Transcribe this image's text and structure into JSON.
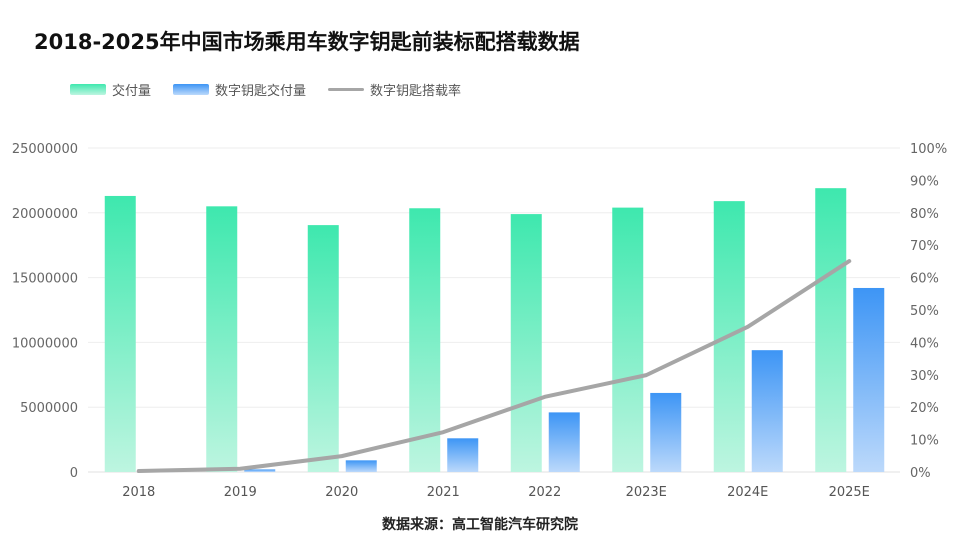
{
  "chart_data": {
    "type": "bar+line",
    "title": "2018-2025年中国市场乘用车数字钥匙前装标配搭载数据",
    "categories": [
      "2018",
      "2019",
      "2020",
      "2021",
      "2022",
      "2023E",
      "2024E",
      "2025E"
    ],
    "series": [
      {
        "name": "交付量",
        "type": "bar",
        "axis": "left",
        "color": "#3ee8ae",
        "values": [
          21300000,
          20500000,
          19050000,
          20350000,
          19900000,
          20400000,
          20900000,
          21900000
        ]
      },
      {
        "name": "数字钥匙交付量",
        "type": "bar",
        "axis": "left",
        "color": "#3d95f5",
        "values": [
          30000,
          200000,
          900000,
          2600000,
          4600000,
          6100000,
          9400000,
          14200000
        ]
      },
      {
        "name": "数字钥匙搭载率",
        "type": "line",
        "axis": "right",
        "color": "#a6a6a6",
        "values": [
          0.3,
          1.0,
          4.9,
          12.3,
          23.2,
          29.9,
          44.8,
          65.1
        ]
      }
    ],
    "y_left": {
      "ylim": [
        0,
        25000000
      ],
      "ticks": [
        "0",
        "5000000",
        "10000000",
        "15000000",
        "20000000",
        "25000000"
      ]
    },
    "y_right": {
      "ylim": [
        0,
        100
      ],
      "ticks": [
        "0%",
        "10%",
        "20%",
        "30%",
        "40%",
        "50%",
        "60%",
        "70%",
        "80%",
        "90%",
        "100%"
      ]
    },
    "grid": true,
    "legend_position": "top-left",
    "source": "数据来源：高工智能汽车研究院"
  }
}
